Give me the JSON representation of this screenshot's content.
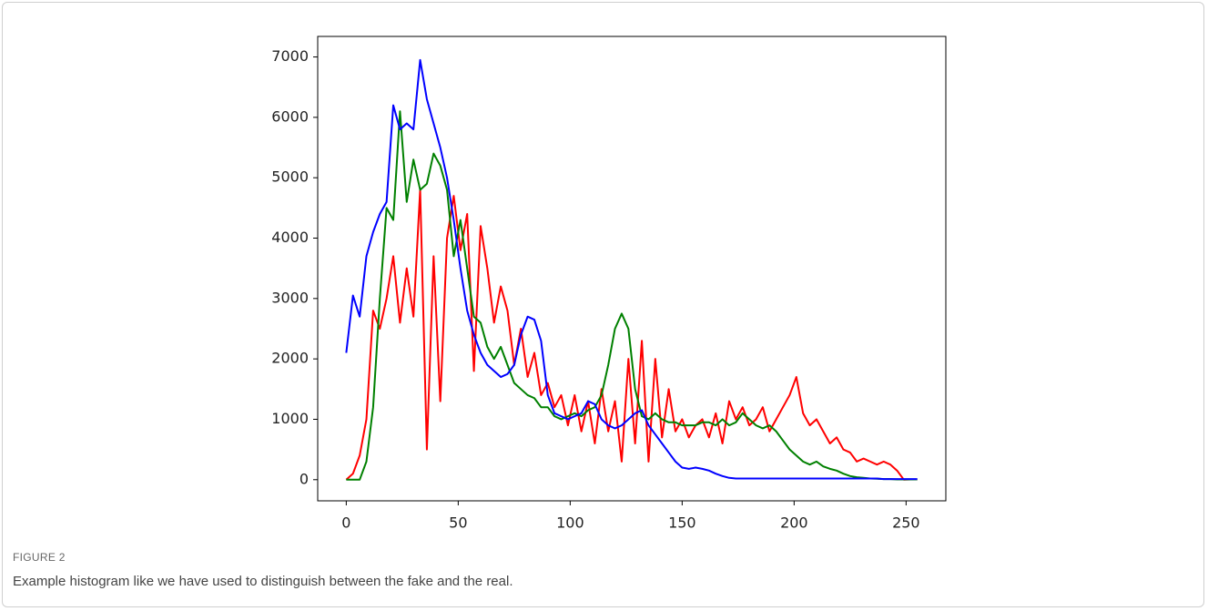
{
  "chart_data": {
    "type": "line",
    "x": [
      0,
      3,
      6,
      9,
      12,
      15,
      18,
      21,
      24,
      27,
      30,
      33,
      36,
      39,
      42,
      45,
      48,
      51,
      54,
      57,
      60,
      63,
      66,
      69,
      72,
      75,
      78,
      81,
      84,
      87,
      90,
      93,
      96,
      99,
      102,
      105,
      108,
      111,
      114,
      117,
      120,
      123,
      126,
      129,
      132,
      135,
      138,
      141,
      144,
      147,
      150,
      153,
      156,
      159,
      162,
      165,
      168,
      171,
      174,
      177,
      180,
      183,
      186,
      189,
      192,
      195,
      198,
      201,
      204,
      207,
      210,
      213,
      216,
      219,
      222,
      225,
      228,
      231,
      234,
      237,
      240,
      243,
      246,
      249,
      252,
      255
    ],
    "series": [
      {
        "color": "#ff0000",
        "values": [
          0,
          100,
          400,
          1000,
          2800,
          2500,
          3000,
          3700,
          2600,
          3500,
          2700,
          4800,
          500,
          3700,
          1300,
          4000,
          4700,
          3800,
          4400,
          1800,
          4200,
          3500,
          2600,
          3200,
          2800,
          1900,
          2500,
          1700,
          2100,
          1400,
          1600,
          1200,
          1400,
          900,
          1400,
          800,
          1300,
          600,
          1500,
          800,
          1300,
          300,
          2000,
          600,
          2300,
          300,
          2000,
          700,
          1500,
          800,
          1000,
          700,
          900,
          1000,
          700,
          1100,
          600,
          1300,
          1000,
          1200,
          900,
          1000,
          1200,
          800,
          1000,
          1200,
          1400,
          1700,
          1100,
          900,
          1000,
          800,
          600,
          700,
          500,
          450,
          300,
          350,
          300,
          250,
          300,
          250,
          150,
          0,
          5,
          5
        ]
      },
      {
        "color": "#008000",
        "values": [
          0,
          0,
          0,
          300,
          1200,
          3000,
          4500,
          4300,
          6100,
          4600,
          5300,
          4800,
          4900,
          5400,
          5200,
          4800,
          3700,
          4300,
          3500,
          2700,
          2600,
          2200,
          2000,
          2200,
          1900,
          1600,
          1500,
          1400,
          1350,
          1200,
          1200,
          1050,
          1000,
          1050,
          1100,
          1050,
          1150,
          1200,
          1400,
          1900,
          2500,
          2750,
          2500,
          1500,
          1050,
          1000,
          1100,
          1000,
          950,
          950,
          900,
          900,
          900,
          950,
          950,
          900,
          1000,
          900,
          950,
          1100,
          1000,
          900,
          850,
          900,
          800,
          650,
          500,
          400,
          300,
          250,
          300,
          220,
          180,
          150,
          100,
          60,
          40,
          30,
          20,
          15,
          10,
          10,
          5,
          5,
          5,
          5
        ]
      },
      {
        "color": "#0000ff",
        "values": [
          2100,
          3050,
          2700,
          3700,
          4100,
          4400,
          4600,
          6200,
          5800,
          5900,
          5800,
          6950,
          6300,
          5900,
          5500,
          5000,
          4300,
          3500,
          2800,
          2400,
          2100,
          1900,
          1800,
          1700,
          1750,
          1900,
          2400,
          2700,
          2650,
          2300,
          1400,
          1100,
          1050,
          1000,
          1050,
          1100,
          1300,
          1250,
          1000,
          900,
          850,
          900,
          1000,
          1100,
          1150,
          900,
          750,
          600,
          450,
          300,
          200,
          180,
          200,
          180,
          150,
          100,
          60,
          30,
          20,
          20,
          20,
          20,
          20,
          20,
          20,
          20,
          20,
          20,
          20,
          20,
          20,
          20,
          20,
          20,
          20,
          20,
          20,
          20,
          20,
          20,
          10,
          10,
          10,
          10,
          10,
          10
        ]
      }
    ],
    "xlim": [
      -12.75,
      267.75
    ],
    "xticks": [
      0,
      50,
      100,
      150,
      200,
      250
    ],
    "ylim": [
      -350,
      7340
    ],
    "yticks": [
      0,
      1000,
      2000,
      3000,
      4000,
      5000,
      6000,
      7000
    ],
    "grid": false
  },
  "caption": {
    "label": "FIGURE 2",
    "text": "Example histogram like we have used to distinguish between the fake and the real."
  }
}
